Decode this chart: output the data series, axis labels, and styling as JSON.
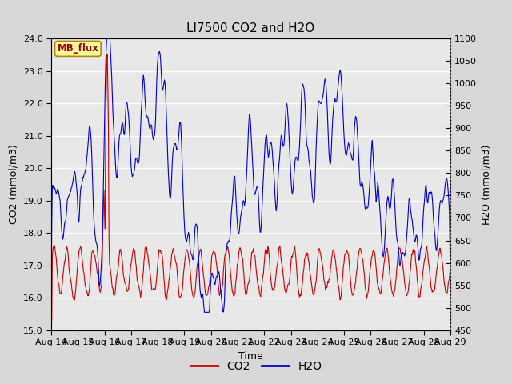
{
  "title": "LI7500 CO2 and H2O",
  "xlabel": "Time",
  "ylabel_left": "CO2 (mmol/m3)",
  "ylabel_right": "H2O (mmol/m3)",
  "ylim_left": [
    15.0,
    24.0
  ],
  "ylim_right": [
    450,
    1100
  ],
  "yticks_left": [
    15.0,
    16.0,
    17.0,
    18.0,
    19.0,
    20.0,
    21.0,
    22.0,
    23.0,
    24.0
  ],
  "yticks_right": [
    450,
    500,
    550,
    600,
    650,
    700,
    750,
    800,
    850,
    900,
    950,
    1000,
    1050,
    1100
  ],
  "xtick_labels": [
    "Aug 14",
    "Aug 15",
    "Aug 16",
    "Aug 17",
    "Aug 18",
    "Aug 19",
    "Aug 20",
    "Aug 21",
    "Aug 22",
    "Aug 23",
    "Aug 24",
    "Aug 25",
    "Aug 26",
    "Aug 27",
    "Aug 28",
    "Aug 29"
  ],
  "co2_color": "#cc0000",
  "h2o_color": "#0000cc",
  "bg_color": "#d8d8d8",
  "plot_bg_color": "#e8e8e8",
  "annotation_text": "MB_flux",
  "annotation_bg": "#ffff99",
  "annotation_border": "#aa8800",
  "legend_co2": "CO2",
  "legend_h2o": "H2O",
  "linewidth": 0.8,
  "title_fontsize": 11,
  "axis_fontsize": 9,
  "tick_fontsize": 8
}
